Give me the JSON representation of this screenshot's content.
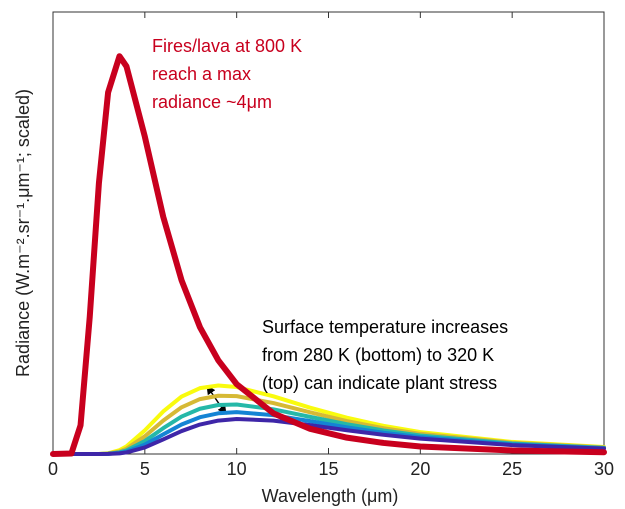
{
  "chart_data": {
    "type": "line",
    "xlabel": "Wavelength (μm)",
    "ylabel": "Radiance (W.m⁻².sr⁻¹.μm⁻¹; scaled)",
    "annotations": [
      {
        "lines": [
          "Fires/lava at 800 K",
          "reach a max",
          "radiance ~4μm"
        ],
        "color": "#c8001e"
      },
      {
        "lines": [
          "Surface temperature increases",
          "from 280 K (bottom) to 320 K",
          "(top) can indicate plant stress"
        ],
        "color": "#000000"
      }
    ],
    "x": [
      0,
      1,
      1.5,
      2,
      2.5,
      3,
      3.62,
      4,
      5,
      6,
      7,
      8,
      9,
      10,
      12,
      14,
      16,
      18,
      20,
      25,
      30
    ],
    "series": [
      {
        "color": "#f9fb0e",
        "values": [
          0,
          0,
          0,
          0,
          0,
          0.0017,
          0.0087,
          0.0172,
          0.0534,
          0.0962,
          0.13,
          0.149,
          0.155,
          0.1515,
          0.1305,
          0.1048,
          0.0821,
          0.0637,
          0.0496,
          0.0273,
          0.0159
        ]
      },
      {
        "color": "#d6b935",
        "values": [
          0,
          0,
          0,
          0,
          0,
          0.0011,
          0.0058,
          0.012,
          0.04,
          0.0755,
          0.1057,
          0.1242,
          0.1318,
          0.1309,
          0.1153,
          0.0942,
          0.0745,
          0.0584,
          0.0457,
          0.0255,
          0.015
        ]
      },
      {
        "color": "#25b8a8",
        "values": [
          0,
          0,
          0,
          0,
          0,
          0.0006,
          0.0038,
          0.0081,
          0.0293,
          0.0583,
          0.0847,
          0.1024,
          0.1109,
          0.112,
          0.1011,
          0.084,
          0.0673,
          0.0532,
          0.042,
          0.0237,
          0.014
        ]
      },
      {
        "color": "#1484d4",
        "values": [
          0,
          0,
          0,
          0,
          0,
          0.0004,
          0.0024,
          0.0054,
          0.0211,
          0.0443,
          0.0668,
          0.0832,
          0.0921,
          0.0948,
          0.0878,
          0.0743,
          0.0604,
          0.0482,
          0.0383,
          0.0219,
          0.0131
        ]
      },
      {
        "color": "#3e26a8",
        "values": [
          0,
          0,
          0,
          0,
          0,
          0.0002,
          0.0015,
          0.0035,
          0.0148,
          0.033,
          0.0519,
          0.0667,
          0.0756,
          0.0793,
          0.0756,
          0.0653,
          0.0538,
          0.0434,
          0.0348,
          0.0202,
          0.0122
        ]
      },
      {
        "color": "#c8001e",
        "values": [
          0,
          0.001,
          0.065,
          0.31,
          0.613,
          0.818,
          0.9,
          0.877,
          0.718,
          0.537,
          0.393,
          0.287,
          0.212,
          0.158,
          0.092,
          0.057,
          0.037,
          0.025,
          0.017,
          0.008,
          0.004
        ]
      }
    ],
    "xlim": [
      0,
      30
    ],
    "xticks": [
      0,
      5,
      10,
      15,
      20,
      25,
      30
    ],
    "ylim": [
      0,
      1
    ]
  }
}
